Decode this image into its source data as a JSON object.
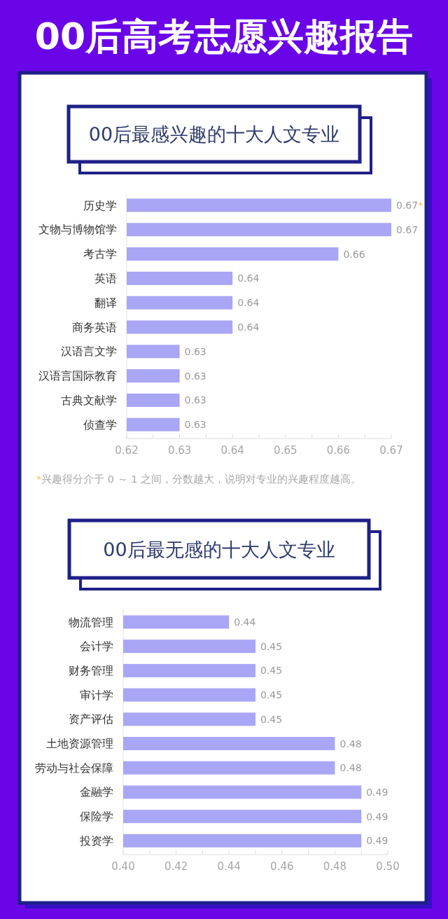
{
  "chart_data": [
    {
      "type": "other",
      "title": "00后高考志愿兴趣报告"
    },
    {
      "type": "bar",
      "orientation": "horizontal",
      "title": "00后最感兴趣的十大人文专业",
      "categories": [
        "历史学",
        "文物与博物馆学",
        "考古学",
        "英语",
        "翻译",
        "商务英语",
        "汉语言文学",
        "汉语言国际教育",
        "古典文献学",
        "侦查学"
      ],
      "values": [
        0.67,
        0.67,
        0.66,
        0.64,
        0.64,
        0.64,
        0.63,
        0.63,
        0.63,
        0.63
      ],
      "value_labels": [
        "0.67*",
        "0.67",
        "0.66",
        "0.64",
        "0.64",
        "0.64",
        "0.63",
        "0.63",
        "0.63",
        "0.63"
      ],
      "color": "#a9a6f6",
      "xlim": [
        0.62,
        0.67
      ],
      "xticks": [
        0.62,
        {
          "value": 0.625,
          "label": null
        },
        0.63,
        {
          "value": 0.635,
          "label": null
        },
        0.64,
        {
          "value": 0.645,
          "label": null
        },
        0.65,
        {
          "value": 0.655,
          "label": null
        },
        0.66,
        {
          "value": 0.665,
          "label": null
        },
        0.67
      ],
      "annotations": [
        "*兴趣得分介于 0 ～ 1 之间，分数越大，说明对专业的兴趣程度越高。"
      ]
    },
    {
      "type": "bar",
      "orientation": "horizontal",
      "title": "00后最无感的十大人文专业",
      "categories": [
        "物流管理",
        "会计学",
        "财务管理",
        "审计学",
        "资产评估",
        "土地资源管理",
        "劳动与社会保障",
        "金融学",
        "保险学",
        "投资学"
      ],
      "values": [
        0.44,
        0.45,
        0.45,
        0.45,
        0.45,
        0.48,
        0.48,
        0.49,
        0.49,
        0.49
      ],
      "data_labels": true,
      "color": "#a9a6f6",
      "xlim": [
        0.4,
        0.5
      ],
      "xticks": [
        {
          "value": 0.4,
          "label": "0.40"
        },
        {
          "value": 0.41,
          "label": null
        },
        0.42,
        {
          "value": 0.43,
          "label": null
        },
        0.44,
        {
          "value": 0.45,
          "label": null
        },
        0.46,
        {
          "value": 0.47,
          "label": null
        },
        0.48,
        {
          "value": 0.49,
          "label": null
        },
        {
          "value": 0.5,
          "label": "0.50"
        }
      ]
    }
  ]
}
